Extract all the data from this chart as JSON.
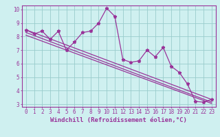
{
  "xlabel": "Windchill (Refroidissement éolien,°C)",
  "bg_color": "#cff0f0",
  "grid_color": "#99cccc",
  "line_color": "#993399",
  "xlim": [
    -0.5,
    23.5
  ],
  "ylim": [
    2.8,
    10.3
  ],
  "xticks": [
    0,
    1,
    2,
    3,
    4,
    5,
    6,
    7,
    8,
    9,
    10,
    11,
    12,
    13,
    14,
    15,
    16,
    17,
    18,
    19,
    20,
    21,
    22,
    23
  ],
  "yticks": [
    3,
    4,
    5,
    6,
    7,
    8,
    9,
    10
  ],
  "curve1_x": [
    0,
    1,
    2,
    3,
    4,
    5,
    6,
    7,
    8,
    9,
    10,
    11,
    12,
    13,
    14,
    15,
    16,
    17,
    18,
    19,
    20,
    21,
    22,
    23
  ],
  "curve1_y": [
    8.5,
    8.2,
    8.4,
    7.8,
    8.4,
    7.0,
    7.6,
    8.3,
    8.4,
    9.0,
    10.1,
    9.5,
    6.3,
    6.1,
    6.2,
    7.0,
    6.5,
    7.2,
    5.8,
    5.35,
    4.5,
    3.2,
    3.15,
    3.35
  ],
  "line1_x": [
    0,
    23
  ],
  "line1_y": [
    8.5,
    3.35
  ],
  "line2_x": [
    0,
    23
  ],
  "line2_y": [
    8.3,
    3.15
  ],
  "line3_x": [
    0,
    23
  ],
  "line3_y": [
    8.1,
    3.05
  ],
  "tick_fontsize": 5.5,
  "label_fontsize": 6.5,
  "text_color": "#993399"
}
